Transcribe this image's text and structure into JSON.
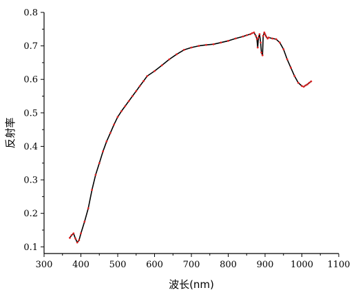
{
  "chart_data": {
    "type": "line",
    "title": "",
    "xlabel": "波长(nm)",
    "ylabel": "反射率",
    "xlim": [
      300,
      1100
    ],
    "ylim": [
      0.08,
      0.8
    ],
    "xticks": [
      300,
      400,
      500,
      600,
      700,
      800,
      900,
      1000,
      1100
    ],
    "yticks": [
      0.1,
      0.2,
      0.3,
      0.4,
      0.5,
      0.6,
      0.7,
      0.8
    ],
    "grid": false,
    "legend": "none",
    "colors": {
      "line": "#000000",
      "marker": "#e02020"
    },
    "series": [
      {
        "x": [
          370,
          375,
          380,
          385,
          390,
          395,
          400,
          410,
          420,
          430,
          440,
          450,
          460,
          470,
          480,
          490,
          500,
          510,
          520,
          530,
          540,
          550,
          560,
          570,
          580,
          600,
          620,
          640,
          660,
          680,
          700,
          720,
          740,
          760,
          780,
          800,
          820,
          840,
          850,
          860,
          865,
          870,
          875,
          878,
          880,
          882,
          885,
          888,
          890,
          893,
          895,
          898,
          900,
          903,
          907,
          910,
          920,
          930,
          940,
          950,
          960,
          970,
          980,
          990,
          1000,
          1005,
          1010,
          1015,
          1020,
          1025
        ],
        "y": [
          0.127,
          0.135,
          0.14,
          0.125,
          0.113,
          0.12,
          0.14,
          0.175,
          0.215,
          0.27,
          0.315,
          0.35,
          0.385,
          0.415,
          0.44,
          0.465,
          0.488,
          0.505,
          0.52,
          0.535,
          0.55,
          0.565,
          0.58,
          0.595,
          0.61,
          0.625,
          0.642,
          0.66,
          0.675,
          0.688,
          0.695,
          0.7,
          0.703,
          0.705,
          0.71,
          0.715,
          0.722,
          0.728,
          0.732,
          0.735,
          0.738,
          0.74,
          0.73,
          0.72,
          0.695,
          0.725,
          0.735,
          0.71,
          0.68,
          0.672,
          0.73,
          0.74,
          0.735,
          0.728,
          0.722,
          0.725,
          0.722,
          0.72,
          0.71,
          0.69,
          0.66,
          0.635,
          0.61,
          0.59,
          0.58,
          0.578,
          0.582,
          0.585,
          0.59,
          0.594
        ]
      }
    ]
  }
}
